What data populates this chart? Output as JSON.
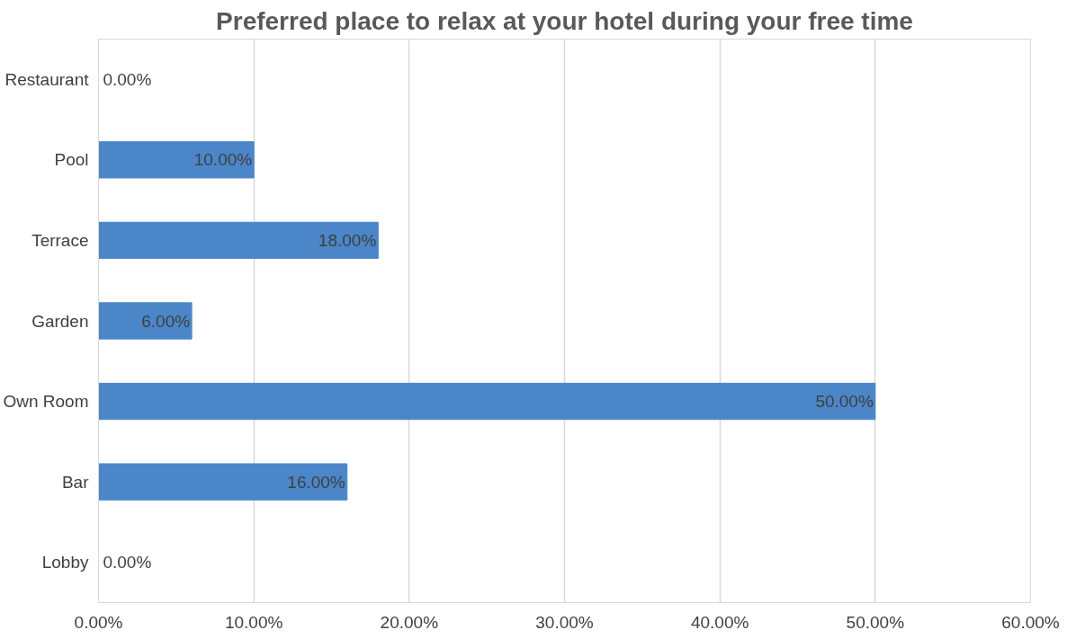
{
  "chart_data": {
    "type": "bar",
    "orientation": "horizontal",
    "title": "Preferred place to relax at your hotel during your free time",
    "categories": [
      "Restaurant",
      "Pool",
      "Terrace",
      "Garden",
      "Own Room",
      "Bar",
      "Lobby"
    ],
    "values": [
      0,
      10,
      18,
      6,
      50,
      16,
      0
    ],
    "value_labels": [
      "0.00%",
      "10.00%",
      "18.00%",
      "6.00%",
      "50.00%",
      "16.00%",
      "0.00%"
    ],
    "color": "#4a86c8",
    "xlim": [
      0,
      60
    ],
    "xticks": [
      {
        "value": 0,
        "label": "0.00%"
      },
      {
        "value": 10,
        "label": "10.00%"
      },
      {
        "value": 20,
        "label": "20.00%"
      },
      {
        "value": 30,
        "label": "30.00%"
      },
      {
        "value": 40,
        "label": "40.00%"
      },
      {
        "value": 50,
        "label": "50.00%"
      },
      {
        "value": 60,
        "label": "60.00%"
      }
    ],
    "grid": "x"
  }
}
